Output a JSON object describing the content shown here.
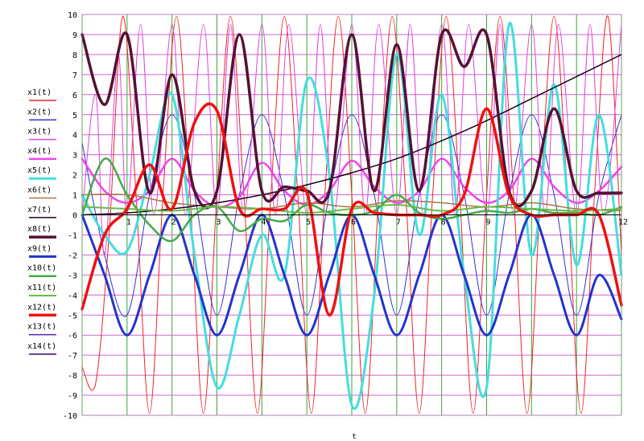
{
  "chart_data": {
    "type": "line",
    "title": "",
    "xlabel": "t",
    "ylabel": "",
    "xlim": [
      0,
      12
    ],
    "ylim": [
      -10,
      10
    ],
    "grid": true,
    "legend_position": "left",
    "x_ticks": [
      "0",
      "1",
      "2",
      "3",
      "4",
      "5",
      "6",
      "7",
      "8",
      "9",
      "10",
      "11",
      "12"
    ],
    "y_ticks": [
      "10",
      "9",
      "8",
      "7",
      "6",
      "5",
      "4",
      "3",
      "2",
      "1",
      "0",
      "-1",
      "-2",
      "-3",
      "-4",
      "-5",
      "-6",
      "-7",
      "-8",
      "-9",
      "-10"
    ],
    "x_tick_labels_shown": [
      "1",
      "2",
      "3",
      "4",
      "5",
      "6",
      "7",
      "8",
      "9",
      "12"
    ],
    "y_tick_labels_shown": [
      "10",
      "9",
      "8",
      "7",
      "6",
      "5",
      "4",
      "3",
      "2",
      "1",
      "0",
      "-1",
      "-2",
      "-3",
      "-4",
      "-5",
      "-6",
      "-7",
      "-8",
      "-9",
      "-10"
    ],
    "colors": {
      "grid_vertical": "#33aa33",
      "grid_horizontal": "#cc66cc",
      "axis": "#000000"
    },
    "series": [
      {
        "name": "x1(t)",
        "color": "#ee2222",
        "width": 1,
        "points": [
          [
            0,
            -7.6
          ],
          [
            0.3,
            -8.4
          ],
          [
            0.6,
            -1
          ],
          [
            0.9,
            9.9
          ],
          [
            1.2,
            1
          ],
          [
            1.5,
            -9.9
          ],
          [
            1.8,
            1
          ],
          [
            2.1,
            9.9
          ],
          [
            2.4,
            1
          ],
          [
            2.7,
            -9.9
          ],
          [
            3.0,
            1
          ],
          [
            3.3,
            9.9
          ],
          [
            3.6,
            1
          ],
          [
            3.9,
            -9.9
          ],
          [
            4.2,
            1
          ],
          [
            4.5,
            9.9
          ],
          [
            4.8,
            1
          ],
          [
            5.1,
            -9.9
          ],
          [
            5.4,
            1
          ],
          [
            5.7,
            9.9
          ],
          [
            6.0,
            1
          ],
          [
            6.3,
            -9.9
          ],
          [
            6.6,
            1
          ],
          [
            6.9,
            9.9
          ],
          [
            7.2,
            1
          ],
          [
            7.5,
            -9.9
          ],
          [
            7.8,
            1
          ],
          [
            8.1,
            9.9
          ],
          [
            8.4,
            1
          ],
          [
            8.7,
            -9.9
          ],
          [
            9.0,
            1
          ],
          [
            9.3,
            9.9
          ],
          [
            9.6,
            1
          ],
          [
            9.9,
            -9.9
          ],
          [
            10.2,
            1
          ],
          [
            10.5,
            9.9
          ],
          [
            10.8,
            1
          ],
          [
            11.1,
            -9.9
          ],
          [
            11.4,
            1
          ],
          [
            11.7,
            9.9
          ],
          [
            12,
            -2
          ]
        ]
      },
      {
        "name": "x2(t)",
        "color": "#3333cc",
        "width": 1,
        "points": [
          [
            0,
            3.6
          ],
          [
            0.5,
            -2
          ],
          [
            1.0,
            -5
          ],
          [
            1.5,
            1
          ],
          [
            2.0,
            5
          ],
          [
            2.5,
            1
          ],
          [
            3.0,
            -5
          ],
          [
            3.5,
            1
          ],
          [
            4.0,
            5
          ],
          [
            4.5,
            1
          ],
          [
            5.0,
            -5
          ],
          [
            5.5,
            1
          ],
          [
            6.0,
            5
          ],
          [
            6.5,
            1
          ],
          [
            7.0,
            -5
          ],
          [
            7.5,
            1
          ],
          [
            8.0,
            5
          ],
          [
            8.5,
            1
          ],
          [
            9.0,
            -5
          ],
          [
            9.5,
            1
          ],
          [
            10.0,
            5
          ],
          [
            10.5,
            1
          ],
          [
            11.0,
            -5
          ],
          [
            11.5,
            1
          ],
          [
            12,
            5
          ]
        ]
      },
      {
        "name": "x3(t)",
        "color": "#dd44dd",
        "width": 1,
        "points": [
          [
            0,
            0
          ],
          [
            0.3,
            6
          ],
          [
            0.5,
            -2
          ],
          [
            0.8,
            8
          ],
          [
            1.0,
            0
          ],
          [
            1.3,
            9.5
          ],
          [
            1.6,
            0
          ],
          [
            2.0,
            9.5
          ],
          [
            2.3,
            0
          ],
          [
            2.7,
            9.5
          ],
          [
            3.0,
            0
          ],
          [
            3.3,
            9.5
          ],
          [
            3.6,
            0
          ],
          [
            4.0,
            9.5
          ],
          [
            4.3,
            0
          ],
          [
            4.6,
            9.5
          ],
          [
            5.0,
            0
          ],
          [
            5.3,
            9.5
          ],
          [
            5.6,
            0
          ],
          [
            6.0,
            9.5
          ],
          [
            6.3,
            0
          ],
          [
            6.6,
            9.5
          ],
          [
            7.0,
            0
          ],
          [
            7.3,
            9.5
          ],
          [
            7.6,
            0
          ],
          [
            8.0,
            9.5
          ],
          [
            8.3,
            0
          ],
          [
            8.6,
            9.5
          ],
          [
            9.0,
            0
          ],
          [
            9.3,
            9.5
          ],
          [
            9.6,
            0
          ],
          [
            10.0,
            9.5
          ],
          [
            10.3,
            0
          ],
          [
            10.6,
            9.5
          ],
          [
            11.0,
            0
          ],
          [
            11.3,
            9.5
          ],
          [
            11.6,
            0
          ],
          [
            12,
            9.5
          ]
        ]
      },
      {
        "name": "x4(t)",
        "color": "#ee44ee",
        "width": 2.5,
        "points": [
          [
            0,
            2.8
          ],
          [
            0.5,
            1.2
          ],
          [
            1.0,
            0.6
          ],
          [
            1.5,
            1.2
          ],
          [
            2.0,
            2.8
          ],
          [
            2.5,
            1.2
          ],
          [
            3.0,
            0.4
          ],
          [
            3.5,
            0.9
          ],
          [
            4.0,
            2.6
          ],
          [
            4.5,
            1.2
          ],
          [
            5.0,
            0.5
          ],
          [
            5.5,
            1.2
          ],
          [
            6.0,
            2.7
          ],
          [
            6.5,
            1.4
          ],
          [
            7.0,
            0.6
          ],
          [
            7.5,
            1.2
          ],
          [
            8.0,
            2.8
          ],
          [
            8.5,
            1.4
          ],
          [
            9.0,
            0.6
          ],
          [
            9.5,
            1.2
          ],
          [
            10.0,
            2.8
          ],
          [
            10.5,
            1.4
          ],
          [
            11.0,
            0.6
          ],
          [
            11.5,
            1.2
          ],
          [
            12,
            2.4
          ]
        ]
      },
      {
        "name": "x5(t)",
        "color": "#44dddd",
        "width": 3,
        "points": [
          [
            0,
            1
          ],
          [
            0.5,
            -1
          ],
          [
            1.0,
            -1.8
          ],
          [
            1.5,
            2
          ],
          [
            2.0,
            6
          ],
          [
            2.5,
            -2
          ],
          [
            3.0,
            -8.6
          ],
          [
            3.5,
            -5
          ],
          [
            4.0,
            -1
          ],
          [
            4.5,
            -3
          ],
          [
            5.0,
            6.7
          ],
          [
            5.5,
            2
          ],
          [
            6.0,
            -9.5
          ],
          [
            6.5,
            -4
          ],
          [
            7.0,
            8
          ],
          [
            7.5,
            -1
          ],
          [
            8.0,
            6
          ],
          [
            8.5,
            -3
          ],
          [
            9.0,
            -8.6
          ],
          [
            9.5,
            9.5
          ],
          [
            10.0,
            -2
          ],
          [
            10.5,
            6.5
          ],
          [
            11.0,
            -2.5
          ],
          [
            11.5,
            5
          ],
          [
            12,
            -3
          ]
        ]
      },
      {
        "name": "x6(t)",
        "color": "#aa7744",
        "width": 1.5,
        "points": [
          [
            0,
            1
          ],
          [
            1,
            1
          ],
          [
            2,
            0.6
          ],
          [
            3,
            0.4
          ],
          [
            4,
            0.3
          ],
          [
            5,
            0.6
          ],
          [
            6,
            0.4
          ],
          [
            7,
            0.7
          ],
          [
            8,
            0.6
          ],
          [
            9,
            0.4
          ],
          [
            10,
            0.6
          ],
          [
            11,
            0.3
          ],
          [
            12,
            0.2
          ]
        ]
      },
      {
        "name": "x7(t)",
        "color": "#220022",
        "width": 1.5,
        "points": [
          [
            0,
            0
          ],
          [
            1,
            0.1
          ],
          [
            2,
            0.3
          ],
          [
            3,
            0.6
          ],
          [
            4,
            1.0
          ],
          [
            5,
            1.5
          ],
          [
            6,
            2.1
          ],
          [
            7,
            2.8
          ],
          [
            8,
            3.7
          ],
          [
            9,
            4.7
          ],
          [
            10,
            5.8
          ],
          [
            11,
            6.9
          ],
          [
            12,
            8
          ]
        ]
      },
      {
        "name": "x8(t)",
        "color": "#551133",
        "width": 3.5,
        "points": [
          [
            0,
            9
          ],
          [
            0.5,
            5.5
          ],
          [
            1.0,
            9
          ],
          [
            1.5,
            1.1
          ],
          [
            2.0,
            7
          ],
          [
            2.5,
            1.2
          ],
          [
            3.0,
            1.2
          ],
          [
            3.5,
            9
          ],
          [
            4.0,
            1.2
          ],
          [
            4.5,
            1.4
          ],
          [
            5.0,
            1.2
          ],
          [
            5.5,
            1.2
          ],
          [
            6.0,
            9
          ],
          [
            6.5,
            1.2
          ],
          [
            7.0,
            8.5
          ],
          [
            7.5,
            1.2
          ],
          [
            8.0,
            9
          ],
          [
            8.5,
            7.4
          ],
          [
            9.0,
            9
          ],
          [
            9.5,
            1.2
          ],
          [
            10.0,
            1.2
          ],
          [
            10.5,
            5.3
          ],
          [
            11.0,
            1.2
          ],
          [
            11.5,
            1.1
          ],
          [
            12,
            1.1
          ]
        ]
      },
      {
        "name": "x9(t)",
        "color": "#2233cc",
        "width": 3,
        "points": [
          [
            0,
            0
          ],
          [
            0.5,
            -3
          ],
          [
            1.0,
            -6
          ],
          [
            1.5,
            -3
          ],
          [
            2.0,
            0
          ],
          [
            2.5,
            -3
          ],
          [
            3.0,
            -6
          ],
          [
            3.5,
            -3
          ],
          [
            4.0,
            0
          ],
          [
            4.5,
            -3
          ],
          [
            5.0,
            -6
          ],
          [
            5.5,
            -3
          ],
          [
            6.0,
            0
          ],
          [
            6.5,
            -3
          ],
          [
            7.0,
            -6
          ],
          [
            7.5,
            -3
          ],
          [
            8.0,
            0
          ],
          [
            8.5,
            -3
          ],
          [
            9.0,
            -6
          ],
          [
            9.5,
            -3
          ],
          [
            10.0,
            0
          ],
          [
            10.5,
            -3
          ],
          [
            11.0,
            -6
          ],
          [
            11.5,
            -3
          ],
          [
            12,
            -5.2
          ]
        ]
      },
      {
        "name": "x10(t)",
        "color": "#44aa44",
        "width": 2.5,
        "points": [
          [
            0,
            0
          ],
          [
            0.5,
            2.8
          ],
          [
            1.0,
            1
          ],
          [
            1.5,
            -0.5
          ],
          [
            2.0,
            -1.3
          ],
          [
            2.5,
            0
          ],
          [
            3.0,
            0.4
          ],
          [
            3.5,
            -0.8
          ],
          [
            4.0,
            -0.2
          ],
          [
            4.5,
            -0.3
          ],
          [
            5.0,
            0.5
          ],
          [
            5.5,
            0.1
          ],
          [
            6.0,
            0
          ],
          [
            6.5,
            0.2
          ],
          [
            7.0,
            1
          ],
          [
            7.5,
            0.1
          ],
          [
            8.0,
            -0.2
          ],
          [
            8.5,
            0
          ],
          [
            9.0,
            0.2
          ],
          [
            9.5,
            0.1
          ],
          [
            10.0,
            0.3
          ],
          [
            10.5,
            0.1
          ],
          [
            11.0,
            0.1
          ],
          [
            11.5,
            0
          ],
          [
            12,
            0.4
          ]
        ]
      },
      {
        "name": "x11(t)",
        "color": "#66bb44",
        "width": 2,
        "points": [
          [
            0,
            0.4
          ],
          [
            1,
            0.3
          ],
          [
            2,
            0.2
          ],
          [
            3,
            0.4
          ],
          [
            4,
            0.3
          ],
          [
            5,
            0.1
          ],
          [
            6,
            0.3
          ],
          [
            7,
            0.5
          ],
          [
            8,
            0.2
          ],
          [
            9,
            0.4
          ],
          [
            10,
            0.3
          ],
          [
            11,
            0.2
          ],
          [
            12,
            0.3
          ]
        ]
      },
      {
        "name": "x12(t)",
        "color": "#ee1111",
        "width": 3.5,
        "points": [
          [
            0,
            -4.7
          ],
          [
            0.5,
            -1
          ],
          [
            1.0,
            0.3
          ],
          [
            1.5,
            2.5
          ],
          [
            2.0,
            0.3
          ],
          [
            2.5,
            4.6
          ],
          [
            3.0,
            5.2
          ],
          [
            3.5,
            0.3
          ],
          [
            4.0,
            0.3
          ],
          [
            4.5,
            0.3
          ],
          [
            5.0,
            1.1
          ],
          [
            5.5,
            -5
          ],
          [
            6.0,
            0.3
          ],
          [
            6.5,
            0.1
          ],
          [
            7.0,
            0
          ],
          [
            7.5,
            0
          ],
          [
            8.0,
            0
          ],
          [
            8.5,
            1
          ],
          [
            9.0,
            5.3
          ],
          [
            9.5,
            1
          ],
          [
            10.0,
            0
          ],
          [
            10.5,
            0
          ],
          [
            11.0,
            0
          ],
          [
            11.5,
            0
          ],
          [
            12,
            -4.5
          ]
        ]
      },
      {
        "name": "x13(t)",
        "color": "#5522aa",
        "width": 1.5,
        "points": []
      },
      {
        "name": "x14(t)",
        "color": "#330066",
        "width": 1.5,
        "points": []
      }
    ]
  }
}
